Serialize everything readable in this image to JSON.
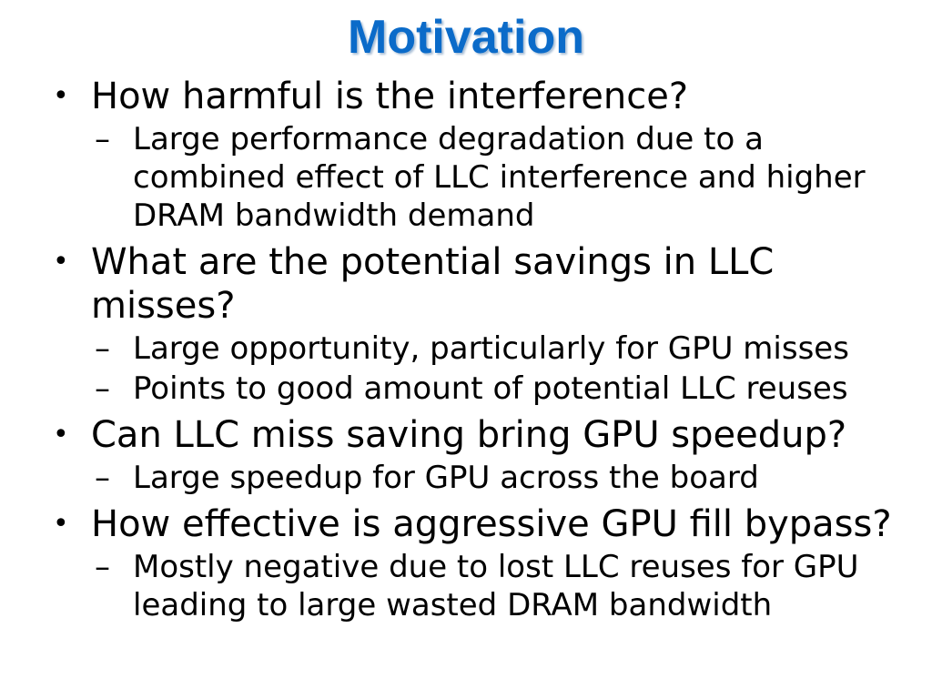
{
  "slide": {
    "title": "Motivation",
    "bullet_glyph": "•",
    "dash_glyph": "–",
    "bullets": [
      {
        "text": "How harmful is the interference?",
        "subs": [
          "Large performance degradation due to a combined effect of LLC interference and higher DRAM bandwidth demand"
        ]
      },
      {
        "text": "What are the potential savings in LLC misses?",
        "subs": [
          "Large opportunity, particularly for GPU misses",
          "Points to good amount of potential LLC reuses"
        ]
      },
      {
        "text": "Can LLC miss saving bring GPU speedup?",
        "subs": [
          "Large speedup for GPU across the board"
        ]
      },
      {
        "text": "How effective is aggressive GPU fill bypass?",
        "subs": [
          "Mostly negative due to lost LLC reuses for GPU leading to large wasted DRAM bandwidth"
        ]
      }
    ]
  }
}
